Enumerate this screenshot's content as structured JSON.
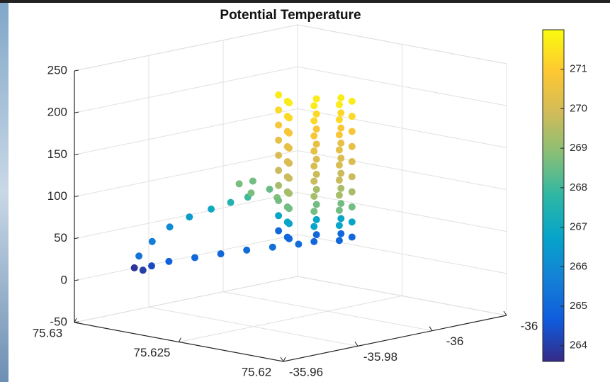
{
  "chart_data": {
    "type": "scatter3d",
    "title": "Potential Temperature",
    "x": [
      75.6282,
      75.628,
      75.6278,
      75.6274,
      75.6268,
      75.6262,
      75.6256,
      75.625,
      75.6244,
      75.6283,
      75.6282,
      75.628,
      75.6277,
      75.6273,
      75.6269,
      75.6264,
      75.626,
      75.6268,
      75.6266,
      75.6256,
      75.625,
      75.6251,
      75.6247,
      75.6239,
      75.623,
      75.6227,
      75.623,
      75.6239,
      75.6247,
      75.6251,
      75.6247,
      75.6239,
      75.623,
      75.6227,
      75.623,
      75.6239,
      75.6247,
      75.6251,
      75.6247,
      75.6239,
      75.623,
      75.6227,
      75.623,
      75.6239,
      75.6247,
      75.6251,
      75.6247,
      75.6239,
      75.623,
      75.6227,
      75.623,
      75.6239,
      75.6247,
      75.6251,
      75.6247,
      75.6239,
      75.623,
      75.6227,
      75.623,
      75.6239,
      75.6247,
      75.6251,
      75.6247,
      75.6239,
      75.623,
      75.6227,
      75.623,
      75.6239,
      75.6247,
      75.6251,
      75.6247,
      75.6239,
      75.623,
      75.6227,
      75.623,
      75.6239,
      75.6247,
      75.6251,
      75.6247,
      75.6239,
      75.623,
      75.6227,
      75.623,
      75.6239,
      75.6247,
      75.6251,
      75.6247,
      75.6239,
      75.623,
      75.6227,
      75.623,
      75.6239,
      75.6247,
      75.6251,
      75.6247,
      75.6239,
      75.623,
      75.6227,
      75.623,
      75.6239,
      75.6247
    ],
    "y": [
      -35.966,
      -35.9672,
      -35.9684,
      -35.9708,
      -35.9744,
      -35.978,
      -35.9816,
      -35.9852,
      -35.9888,
      -35.9678,
      -35.9708,
      -35.9744,
      -35.978,
      -35.9816,
      -35.9846,
      -35.9864,
      -35.99,
      -35.99,
      -35.9852,
      -35.9828,
      -35.9864,
      -35.9902,
      -35.9953,
      -35.9974,
      -35.9953,
      -35.9902,
      -35.9851,
      -35.983,
      -35.9851,
      -35.9902,
      -35.9953,
      -35.9974,
      -35.9953,
      -35.9902,
      -35.9851,
      -35.983,
      -35.9851,
      -35.9902,
      -35.9953,
      -35.9974,
      -35.9953,
      -35.9902,
      -35.9851,
      -35.983,
      -35.9851,
      -35.9902,
      -35.9953,
      -35.9974,
      -35.9953,
      -35.9902,
      -35.9851,
      -35.983,
      -35.9851,
      -35.9902,
      -35.9953,
      -35.9974,
      -35.9953,
      -35.9902,
      -35.9851,
      -35.983,
      -35.9851,
      -35.9902,
      -35.9953,
      -35.9974,
      -35.9953,
      -35.9902,
      -35.9851,
      -35.983,
      -35.9851,
      -35.9902,
      -35.9953,
      -35.9974,
      -35.9953,
      -35.9902,
      -35.9851,
      -35.983,
      -35.9851,
      -35.9902,
      -35.9953,
      -35.9974,
      -35.9953,
      -35.9902,
      -35.9851,
      -35.983,
      -35.9851,
      -35.9902,
      -35.9953,
      -35.9974,
      -35.9953,
      -35.9902,
      -35.9851,
      -35.983,
      -35.9851,
      -35.9902,
      -35.9953,
      -35.9974,
      -35.9953,
      -35.9902,
      -35.9851,
      -35.983,
      -35.9851
    ],
    "z": [
      18,
      15,
      20,
      25,
      29,
      33,
      37,
      40,
      43,
      30,
      45,
      60,
      70,
      78,
      85,
      92,
      100,
      106,
      108,
      104,
      98,
      45,
      47,
      50,
      52,
      54,
      56,
      59,
      61,
      63,
      65,
      68,
      70,
      72,
      74,
      77,
      79,
      81,
      83,
      86,
      88,
      90,
      92,
      95,
      97,
      99,
      101,
      104,
      106,
      108,
      110,
      113,
      115,
      117,
      119,
      122,
      124,
      126,
      128,
      131,
      133,
      135,
      137,
      140,
      142,
      144,
      146,
      149,
      151,
      153,
      155,
      158,
      160,
      162,
      164,
      167,
      169,
      171,
      173,
      176,
      178,
      180,
      182,
      185,
      187,
      189,
      191,
      194,
      196,
      198,
      200,
      203,
      205,
      207,
      209,
      212,
      214,
      216,
      218,
      221,
      223
    ],
    "values": [
      263.8,
      264,
      264.3,
      264.8,
      265,
      265,
      265.1,
      265.2,
      265.2,
      265.3,
      265.6,
      266,
      266.5,
      267,
      267.5,
      268,
      268.5,
      268.6,
      268.7,
      268.7,
      268.8,
      265,
      265,
      265,
      265,
      265,
      265,
      265,
      265,
      266.8,
      266.8,
      266.8,
      266.8,
      266.8,
      266.8,
      266.8,
      266.8,
      268.6,
      268.6,
      268.6,
      268.6,
      268.6,
      268.6,
      268.6,
      268.6,
      269.3,
      269.3,
      269.3,
      269.3,
      269.3,
      269.3,
      269.3,
      269.3,
      269.8,
      269.8,
      269.8,
      269.8,
      269.8,
      269.8,
      269.8,
      269.8,
      270.1,
      270.1,
      270.1,
      270.1,
      270.1,
      270.1,
      270.1,
      270.1,
      270.4,
      270.4,
      270.4,
      270.4,
      270.4,
      270.4,
      270.4,
      270.4,
      270.8,
      270.8,
      270.8,
      270.8,
      270.8,
      270.8,
      270.8,
      270.8,
      271.3,
      271.3,
      271.3,
      271.3,
      271.3,
      271.3,
      271.3,
      271.3,
      271.7,
      271.7,
      271.7,
      271.7,
      271.7,
      271.7,
      271.7,
      271.7
    ],
    "xlim": [
      75.62,
      75.63
    ],
    "xticks": [
      75.62,
      75.625,
      75.63
    ],
    "ylim": [
      -35.96,
      -36.02
    ],
    "yticks": [
      -35.96,
      -35.98,
      -36,
      {
        "value": -36.02,
        "label": "-36"
      }
    ],
    "zlim": [
      -50,
      250
    ],
    "zticks": [
      -50,
      0,
      50,
      100,
      150,
      200,
      250
    ],
    "clim": [
      263.6,
      272
    ],
    "cticks": [
      264,
      265,
      266,
      267,
      268,
      269,
      270,
      271
    ],
    "colormap": [
      "#352a87",
      "#0f5cdd",
      "#1481d6",
      "#06a4ca",
      "#2eb7a4",
      "#87bf77",
      "#d1bb59",
      "#fec832",
      "#f9fb0e"
    ],
    "grid": true
  }
}
